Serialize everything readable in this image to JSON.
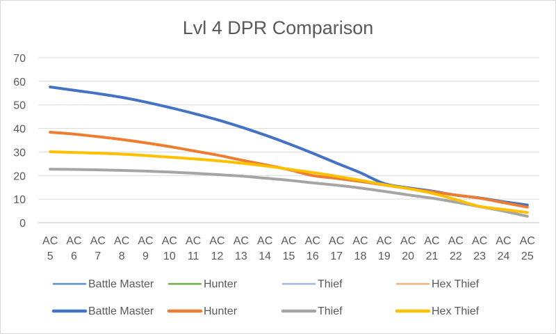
{
  "chart_data": {
    "type": "line",
    "title": "Lvl 4 DPR Comparison",
    "xlabel": "",
    "ylabel": "",
    "ylim": [
      0,
      70
    ],
    "yticks": [
      0,
      10,
      20,
      30,
      40,
      50,
      60,
      70
    ],
    "grid": true,
    "categories": [
      [
        "AC",
        "5"
      ],
      [
        "AC",
        "6"
      ],
      [
        "AC",
        "7"
      ],
      [
        "AC",
        "8"
      ],
      [
        "AC",
        "9"
      ],
      [
        "AC",
        "10"
      ],
      [
        "AC",
        "11"
      ],
      [
        "AC",
        "12"
      ],
      [
        "AC",
        "13"
      ],
      [
        "AC",
        "14"
      ],
      [
        "AC",
        "15"
      ],
      [
        "AC",
        "16"
      ],
      [
        "AC",
        "17"
      ],
      [
        "AC",
        "18"
      ],
      [
        "AC",
        "19"
      ],
      [
        "AC",
        "20"
      ],
      [
        "AC",
        "21"
      ],
      [
        "AC",
        "22"
      ],
      [
        "AC",
        "23"
      ],
      [
        "AC",
        "24"
      ],
      [
        "AC",
        "25"
      ]
    ],
    "series": [
      {
        "name": "Battle Master",
        "color": "#4472c4",
        "values": [
          57.6,
          56.2,
          54.8,
          53.2,
          51.2,
          48.9,
          46.4,
          43.7,
          40.6,
          37.2,
          33.5,
          29.5,
          25.3,
          21.2,
          16.6,
          14.8,
          13.4,
          11.7,
          10.5,
          8.9,
          7.5
        ]
      },
      {
        "name": "Hunter",
        "color": "#ed7d31",
        "values": [
          38.4,
          37.6,
          36.5,
          35.3,
          33.9,
          32.3,
          30.5,
          28.7,
          26.6,
          24.6,
          22.5,
          20.0,
          18.8,
          17.5,
          16.0,
          14.5,
          13.1,
          11.7,
          10.4,
          8.5,
          6.6
        ]
      },
      {
        "name": "Thief",
        "color": "#a5a5a5",
        "values": [
          22.7,
          22.6,
          22.4,
          22.2,
          21.9,
          21.5,
          21.0,
          20.4,
          19.8,
          18.9,
          18.0,
          16.9,
          15.9,
          14.7,
          13.3,
          11.8,
          10.4,
          8.7,
          6.8,
          4.9,
          2.7
        ]
      },
      {
        "name": "Hex Thief",
        "color": "#ffc000",
        "values": [
          30.1,
          29.8,
          29.5,
          29.1,
          28.5,
          27.8,
          27.1,
          26.3,
          25.3,
          24.1,
          22.7,
          21.3,
          19.7,
          18.0,
          16.1,
          14.5,
          12.5,
          9.8,
          6.9,
          5.6,
          4.3
        ]
      }
    ],
    "legend": {
      "placement": "bottom",
      "rows": [
        [
          {
            "label": "Battle Master",
            "color": "#5b8fc9"
          },
          {
            "label": "Hunter",
            "color": "#70ad47"
          },
          {
            "label": "Thief",
            "color": "#a5b8dd"
          },
          {
            "label": "Hex Thief",
            "color": "#f4b183"
          }
        ],
        [
          {
            "label": "Battle Master",
            "color": "#4472c4"
          },
          {
            "label": "Hunter",
            "color": "#ed7d31"
          },
          {
            "label": "Thief",
            "color": "#a5a5a5"
          },
          {
            "label": "Hex Thief",
            "color": "#ffc000"
          }
        ]
      ]
    }
  }
}
